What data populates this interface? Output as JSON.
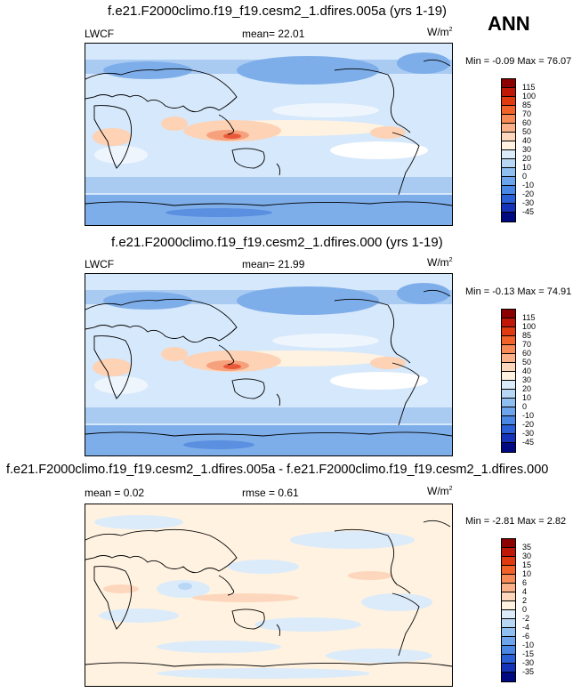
{
  "season": "ANN",
  "panels": [
    {
      "title": "f.e21.F2000climo.f19_f19.cesm2_1.dfires.005a (yrs 1-19)",
      "left_label": "LWCF",
      "center_label": "mean=  22.01",
      "units": "W/m",
      "units_sup": "2",
      "minmax": "Min = -0.09 Max =  76.07",
      "legend_labels": [
        "115",
        "100",
        "85",
        "70",
        "60",
        "50",
        "40",
        "30",
        "20",
        "10",
        "0",
        "-10",
        "-20",
        "-30",
        "-45"
      ],
      "legend_colors": [
        "#8b0000",
        "#c01808",
        "#e03b10",
        "#f2632a",
        "#f78b58",
        "#fab088",
        "#fdd7bd",
        "#fff2e0",
        "#dcebfa",
        "#b8d7f5",
        "#8fbef0",
        "#6da3ea",
        "#4a86e3",
        "#2a5fd6",
        "#1433b8",
        "#000a80"
      ]
    },
    {
      "title": "f.e21.F2000climo.f19_f19.cesm2_1.dfires.000 (yrs 1-19)",
      "left_label": "LWCF",
      "center_label": "mean=  21.99",
      "units": "W/m",
      "units_sup": "2",
      "minmax": "Min = -0.13 Max =  74.91",
      "legend_labels": [
        "115",
        "100",
        "85",
        "70",
        "60",
        "50",
        "40",
        "30",
        "20",
        "10",
        "0",
        "-10",
        "-20",
        "-30",
        "-45"
      ],
      "legend_colors": [
        "#8b0000",
        "#c01808",
        "#e03b10",
        "#f2632a",
        "#f78b58",
        "#fab088",
        "#fdd7bd",
        "#fff2e0",
        "#dcebfa",
        "#b8d7f5",
        "#8fbef0",
        "#6da3ea",
        "#4a86e3",
        "#2a5fd6",
        "#1433b8",
        "#000a80"
      ]
    },
    {
      "title": "f.e21.F2000climo.f19_f19.cesm2_1.dfires.005a - f.e21.F2000climo.f19_f19.cesm2_1.dfires.000",
      "left_label": "mean =   0.02",
      "center_label": "rmse =   0.61",
      "units": "W/m",
      "units_sup": "2",
      "minmax": "Min = -2.81 Max =  2.82",
      "legend_labels": [
        "35",
        "30",
        "15",
        "10",
        "6",
        "4",
        "2",
        "0",
        "-2",
        "-4",
        "-6",
        "-10",
        "-15",
        "-30",
        "-35"
      ],
      "legend_colors": [
        "#8b0000",
        "#c01808",
        "#e03b10",
        "#f2632a",
        "#f78b58",
        "#fab088",
        "#fdd7bd",
        "#fff2e0",
        "#dcebfa",
        "#b8d7f5",
        "#8fbef0",
        "#6da3ea",
        "#4a86e3",
        "#2a5fd6",
        "#1433b8",
        "#000a80"
      ]
    }
  ],
  "colors": {
    "light_blue": "#d6e8fb",
    "mid_blue": "#a9cbf2",
    "blue": "#7eaeea",
    "dark_blue": "#5b8fe0",
    "cream": "#fff2e0",
    "peach": "#fdd2b5",
    "salmon": "#f7a07c",
    "red": "#e95a3a"
  }
}
